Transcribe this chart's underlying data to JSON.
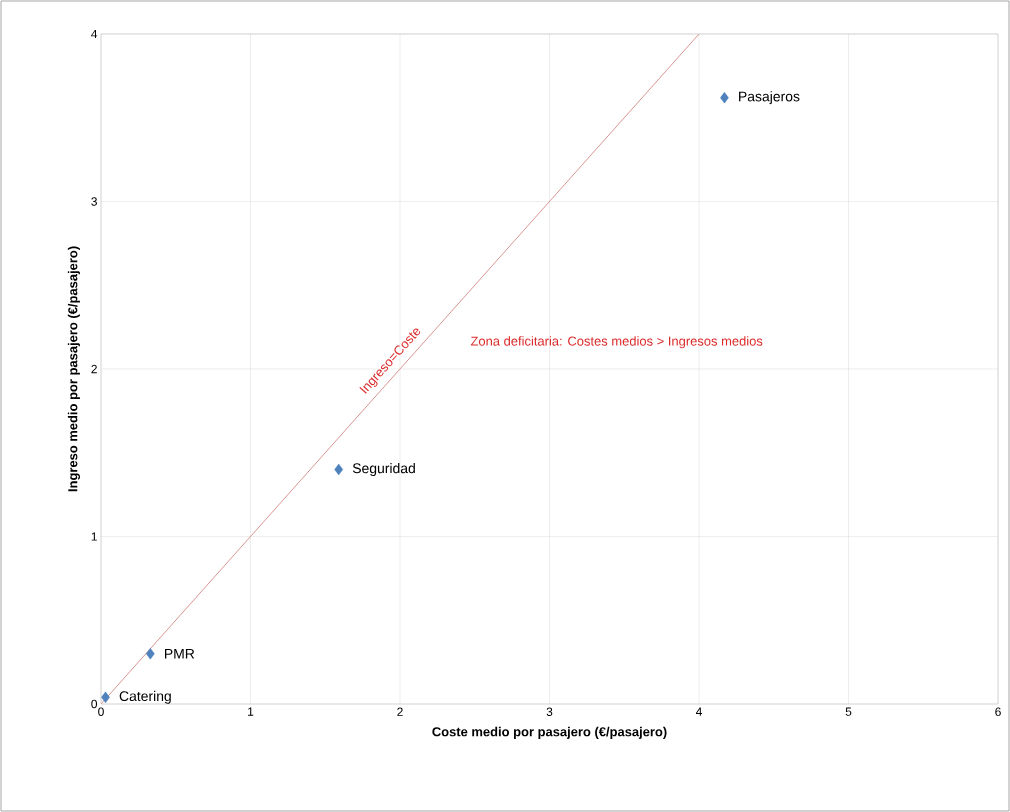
{
  "chart_data": {
    "type": "scatter",
    "xlabel": "Coste medio por pasajero (€/pasajero)",
    "ylabel": "Ingreso medio por pasajero (€/pasajero)",
    "xlim": [
      0,
      6
    ],
    "ylim": [
      0,
      4
    ],
    "xticks": [
      0,
      1,
      2,
      3,
      4,
      5,
      6
    ],
    "yticks": [
      0,
      1,
      2,
      3,
      4
    ],
    "grid": true,
    "marker": "diamond",
    "series": [
      {
        "color": "#4f81bd",
        "x": [
          4.17,
          1.59,
          0.33,
          0.03
        ],
        "values": [
          3.62,
          1.4,
          0.3,
          0.04
        ]
      },
      {
        "type": "line",
        "name": "Ingreso=Coste",
        "color": "#d99694",
        "x": [
          0,
          4
        ],
        "values": [
          0,
          4
        ],
        "marker": "none",
        "line_style": "solid"
      }
    ],
    "annotations": [
      {
        "text": "Pasajeros",
        "x": 4.17,
        "y": 3.62
      },
      {
        "text": "Seguridad",
        "x": 1.59,
        "y": 1.4
      },
      {
        "text": "PMR",
        "x": 0.33,
        "y": 0.3
      },
      {
        "text": "Catering",
        "x": 0.03,
        "y": 0.04
      },
      "Zona deficitaria: Costes medios > Ingresos medios"
    ]
  }
}
